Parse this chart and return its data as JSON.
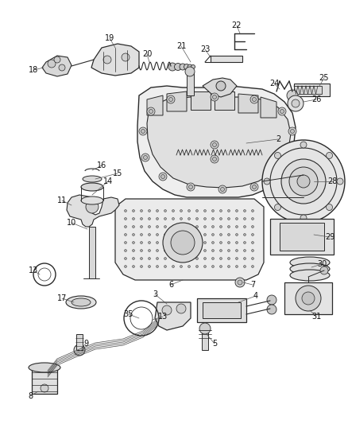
{
  "bg_color": "#ffffff",
  "figsize": [
    4.38,
    5.33
  ],
  "dpi": 100,
  "line_color": "#2a2a2a",
  "fill_color": "#e8e8e8",
  "label_fontsize": 7.0
}
